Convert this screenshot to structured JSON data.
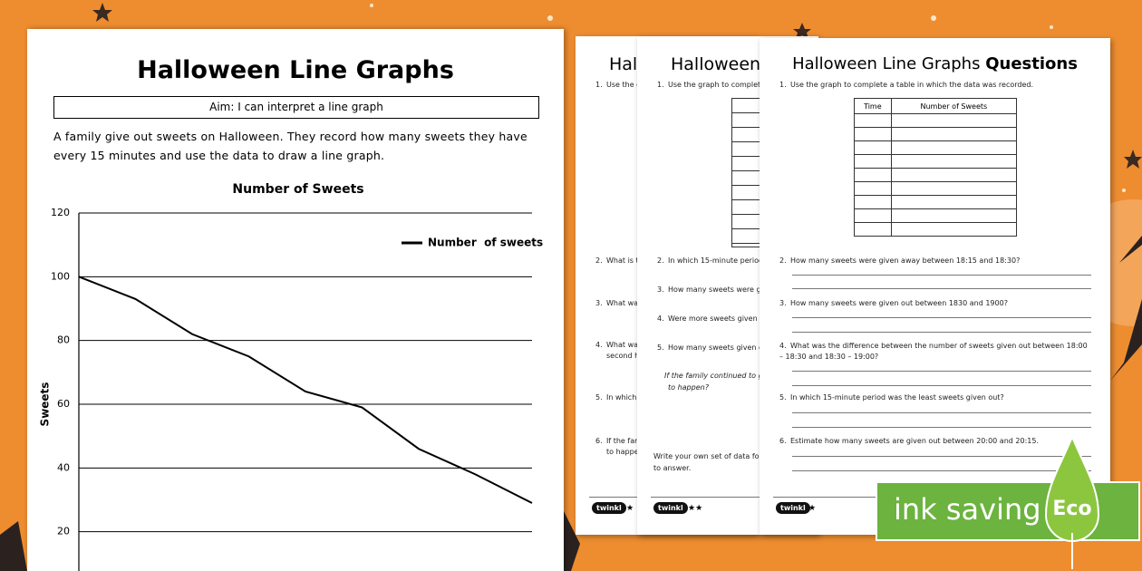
{
  "worksheet": {
    "title": "Halloween Line Graphs",
    "aim": "Aim: I can interpret a line graph",
    "intro": "A family give out sweets on Halloween. They record how many sweets they have every 15 minutes and use the data to draw a line graph."
  },
  "chart_data": {
    "type": "line",
    "title": "Number of Sweets",
    "y_label": "Sweets",
    "categories": [
      null,
      null,
      null,
      null,
      null,
      null,
      null,
      null,
      null
    ],
    "series": [
      {
        "name": "Number  of sweets",
        "color": "#000000",
        "values": [
          100,
          93,
          82,
          75,
          64,
          59,
          46,
          38,
          29
        ]
      }
    ],
    "ylim": [
      0,
      120
    ],
    "yticks": [
      20,
      40,
      60,
      80,
      100,
      120
    ],
    "grid": true,
    "legend": "top-right"
  },
  "front_sheet": {
    "title": "Halloween Line Graphs",
    "title_bold": "Questions",
    "table_header": [
      "Time",
      "Number of Sweets"
    ],
    "questions": [
      {
        "number": "1.",
        "text": "Use the graph to complete a table in which the data was recorded."
      },
      {
        "number": "2.",
        "text": "How many sweets were given away between 18:15 and 18:30?"
      },
      {
        "number": "3.",
        "text": "How many sweets were given out between 1830 and 1900?"
      },
      {
        "number": "4.",
        "text": "What was the difference between the number of sweets given out between 18:00 – 18:30 and 18:30 – 19:00?"
      },
      {
        "number": "5.",
        "text": "In which 15-minute period was the least sweets given out?"
      },
      {
        "number": "6.",
        "text": "Estimate how many sweets are given out between 20:00 and 20:15."
      }
    ],
    "logo": "twinkl",
    "stars": "★"
  },
  "middle_sheet": {
    "title": "Halloween",
    "questions": [
      {
        "number": "1.",
        "text": "Use the graph to complete a"
      },
      {
        "number": "2.",
        "text": "In which 15-minute period("
      },
      {
        "number": "3.",
        "text": "How many sweets were giv"
      },
      {
        "number": "4.",
        "text": "Were more sweets given out"
      },
      {
        "number": "5.",
        "text": "How many sweets given out"
      }
    ],
    "extension": [
      "If the family continued to giv",
      "to happen?"
    ],
    "challenge": [
      "Write your own set of data fo",
      "to answer."
    ],
    "logo": "twinkl",
    "stars": "★★"
  },
  "back_sheet": {
    "title": "Hal",
    "questions": [
      {
        "number": "1.",
        "text": "Use the g"
      },
      {
        "number": "2.",
        "text": "What is t"
      },
      {
        "number": "3.",
        "text": "What wa"
      },
      {
        "number": "4.",
        "text": "What wa"
      },
      {
        "number": "5.",
        "text": "In which"
      },
      {
        "number": "6.",
        "text": "If the fam"
      }
    ],
    "extra": [
      "second h",
      "to happe"
    ],
    "logo": "twinkl",
    "stars": "★"
  },
  "badge": {
    "text": "ink saving",
    "eco": "Eco"
  }
}
